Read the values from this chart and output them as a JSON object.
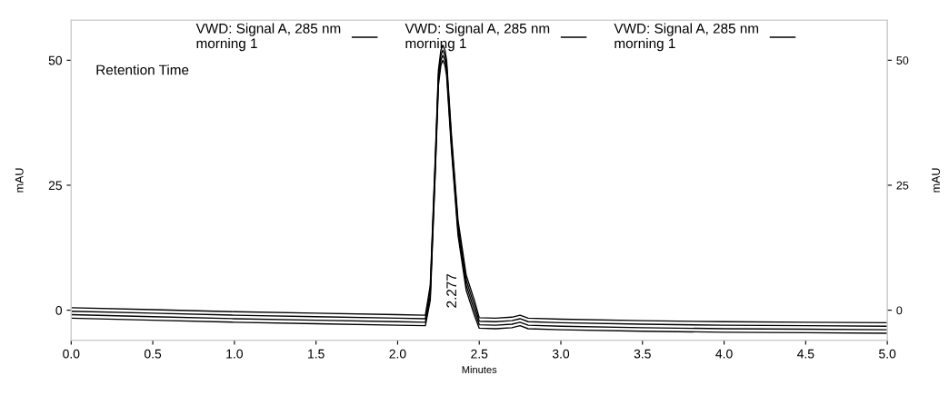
{
  "chart_data": {
    "type": "line",
    "xlabel": "Minutes",
    "ylabel": "mAU",
    "y2label": "mAU",
    "x": [
      0,
      0.5,
      1,
      1.5,
      2,
      2.17,
      2.2,
      2.23,
      2.25,
      2.265,
      2.277,
      2.29,
      2.3,
      2.33,
      2.37,
      2.42,
      2.47,
      2.5,
      2.6,
      2.7,
      2.75,
      2.8,
      3,
      3.5,
      4,
      4.5,
      5
    ],
    "series": [
      {
        "name": "VWD: Signal A, 285 nm\nmorning 1",
        "color": "#000000",
        "values": [
          0.5,
          0.1,
          -0.3,
          -0.6,
          -0.9,
          -1.0,
          5,
          30,
          48,
          52,
          53,
          52,
          50,
          35,
          18,
          7,
          2,
          -1.5,
          -1.6,
          -1.4,
          -1.0,
          -1.6,
          -1.8,
          -2.1,
          -2.3,
          -2.4,
          -2.5
        ]
      },
      {
        "name": "VWD: Signal A, 285 nm\nmorning 1",
        "color": "#000000",
        "values": [
          -0.2,
          -0.6,
          -1.0,
          -1.3,
          -1.6,
          -1.7,
          4,
          29,
          47,
          51,
          52,
          51,
          49,
          34,
          17,
          6,
          1,
          -2.2,
          -2.3,
          -2.1,
          -1.7,
          -2.3,
          -2.5,
          -2.8,
          -3.0,
          -3.1,
          -3.2
        ]
      },
      {
        "name": "VWD: Signal A, 285 nm\nmorning 1",
        "color": "#000000",
        "values": [
          -0.9,
          -1.3,
          -1.7,
          -2.0,
          -2.3,
          -2.4,
          3,
          28,
          46,
          50,
          51,
          50,
          48,
          33,
          16,
          5,
          0,
          -2.9,
          -3.0,
          -2.8,
          -2.4,
          -3.0,
          -3.2,
          -3.5,
          -3.7,
          -3.8,
          -3.9
        ]
      },
      {
        "color": "#000000",
        "values": [
          -1.6,
          -2.0,
          -2.4,
          -2.7,
          -3.0,
          -3.1,
          2,
          27,
          45,
          49,
          50,
          49,
          47,
          32,
          15,
          4,
          -1,
          -3.6,
          -3.7,
          -3.5,
          -3.1,
          -3.7,
          -3.9,
          -4.2,
          -4.4,
          -4.5,
          -4.6
        ]
      }
    ],
    "xlim": [
      0,
      5
    ],
    "xticks": [
      {
        "value": 0,
        "label": "0.0"
      },
      0.5,
      {
        "value": 1,
        "label": "1.0"
      },
      1.5,
      {
        "value": 2,
        "label": "2.0"
      },
      2.5,
      {
        "value": 3,
        "label": "3.0"
      },
      3.5,
      {
        "value": 4,
        "label": "4.0"
      },
      4.5,
      {
        "value": 5,
        "label": "5.0"
      }
    ],
    "ylim": [
      -6,
      58
    ],
    "yticks": [
      0,
      25,
      50
    ],
    "y2lim": [
      -6,
      58
    ],
    "y2ticks": [
      0,
      25,
      50
    ],
    "legend": "top",
    "grid": false,
    "annotations": [
      "Retention Time",
      "2.277"
    ]
  }
}
